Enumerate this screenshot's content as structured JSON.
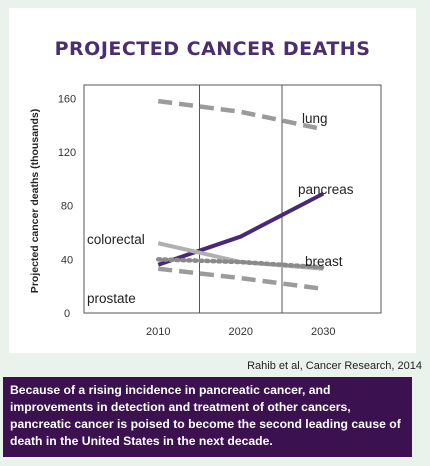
{
  "chart_data": {
    "type": "line",
    "title": "PROJECTED CANCER DEATHS",
    "xlabel": "",
    "ylabel": "Projected cancer deaths (thousands)",
    "x": [
      2010,
      2020,
      2030
    ],
    "xlim": [
      2001,
      2037
    ],
    "ylim": [
      0,
      170
    ],
    "yticks": [
      0,
      40,
      80,
      120,
      160
    ],
    "grid": "vertical lines at 2015 and 2025",
    "series": [
      {
        "name": "lung",
        "values": [
          158,
          150,
          137
        ],
        "color": "#9b9b9b",
        "style": "dashed"
      },
      {
        "name": "pancreas",
        "values": [
          36,
          57,
          89
        ],
        "color": "#4a2878",
        "style": "solid"
      },
      {
        "name": "colorectal",
        "values": [
          52,
          38,
          33
        ],
        "color": "#b0b0b0",
        "style": "solid"
      },
      {
        "name": "breast",
        "values": [
          40,
          38,
          34
        ],
        "color": "#8a8a8a",
        "style": "dotted"
      },
      {
        "name": "prostate",
        "values": [
          33,
          26,
          18
        ],
        "color": "#9b9b9b",
        "style": "dashed"
      }
    ]
  },
  "source": "Rahib et al, Cancer Research, 2014",
  "caption": "Because of a rising incidence in pancreatic cancer, and improvements in detection and treatment of other cancers, pancreatic cancer is poised to become the second leading cause of death in the United States in the next decade."
}
